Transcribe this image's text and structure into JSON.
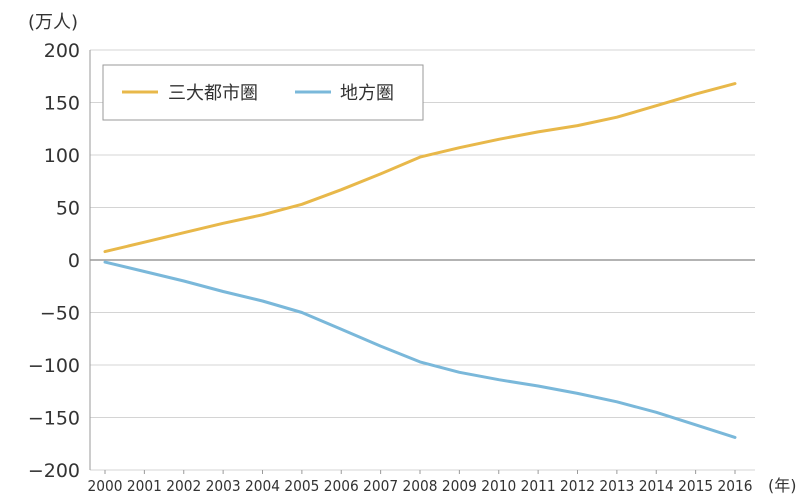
{
  "chart_data": {
    "type": "line",
    "title": "",
    "y_unit": "(万人)",
    "x_unit": "(年)",
    "ylim": [
      -200,
      200
    ],
    "yticks": [
      "200",
      "150",
      "100",
      "50",
      "0",
      "−50",
      "−100",
      "−150",
      "−200"
    ],
    "ytick_values": [
      200,
      150,
      100,
      50,
      0,
      -50,
      -100,
      -150,
      -200
    ],
    "categories": [
      "2000",
      "2001",
      "2002",
      "2003",
      "2004",
      "2005",
      "2006",
      "2007",
      "2008",
      "2009",
      "2010",
      "2011",
      "2012",
      "2013",
      "2014",
      "2015",
      "2016"
    ],
    "grid": "horizontal",
    "legend_placement": "top-left",
    "series": [
      {
        "name": "三大都市圏",
        "color": "#e8b84a",
        "values": [
          8,
          17,
          26,
          35,
          43,
          53,
          67,
          82,
          98,
          107,
          115,
          122,
          128,
          136,
          147,
          158,
          168
        ]
      },
      {
        "name": "地方圏",
        "color": "#7ab8da",
        "values": [
          -2,
          -11,
          -20,
          -30,
          -39,
          -50,
          -66,
          -82,
          -97,
          -107,
          -114,
          -120,
          -127,
          -135,
          -145,
          -157,
          -169
        ]
      }
    ]
  }
}
